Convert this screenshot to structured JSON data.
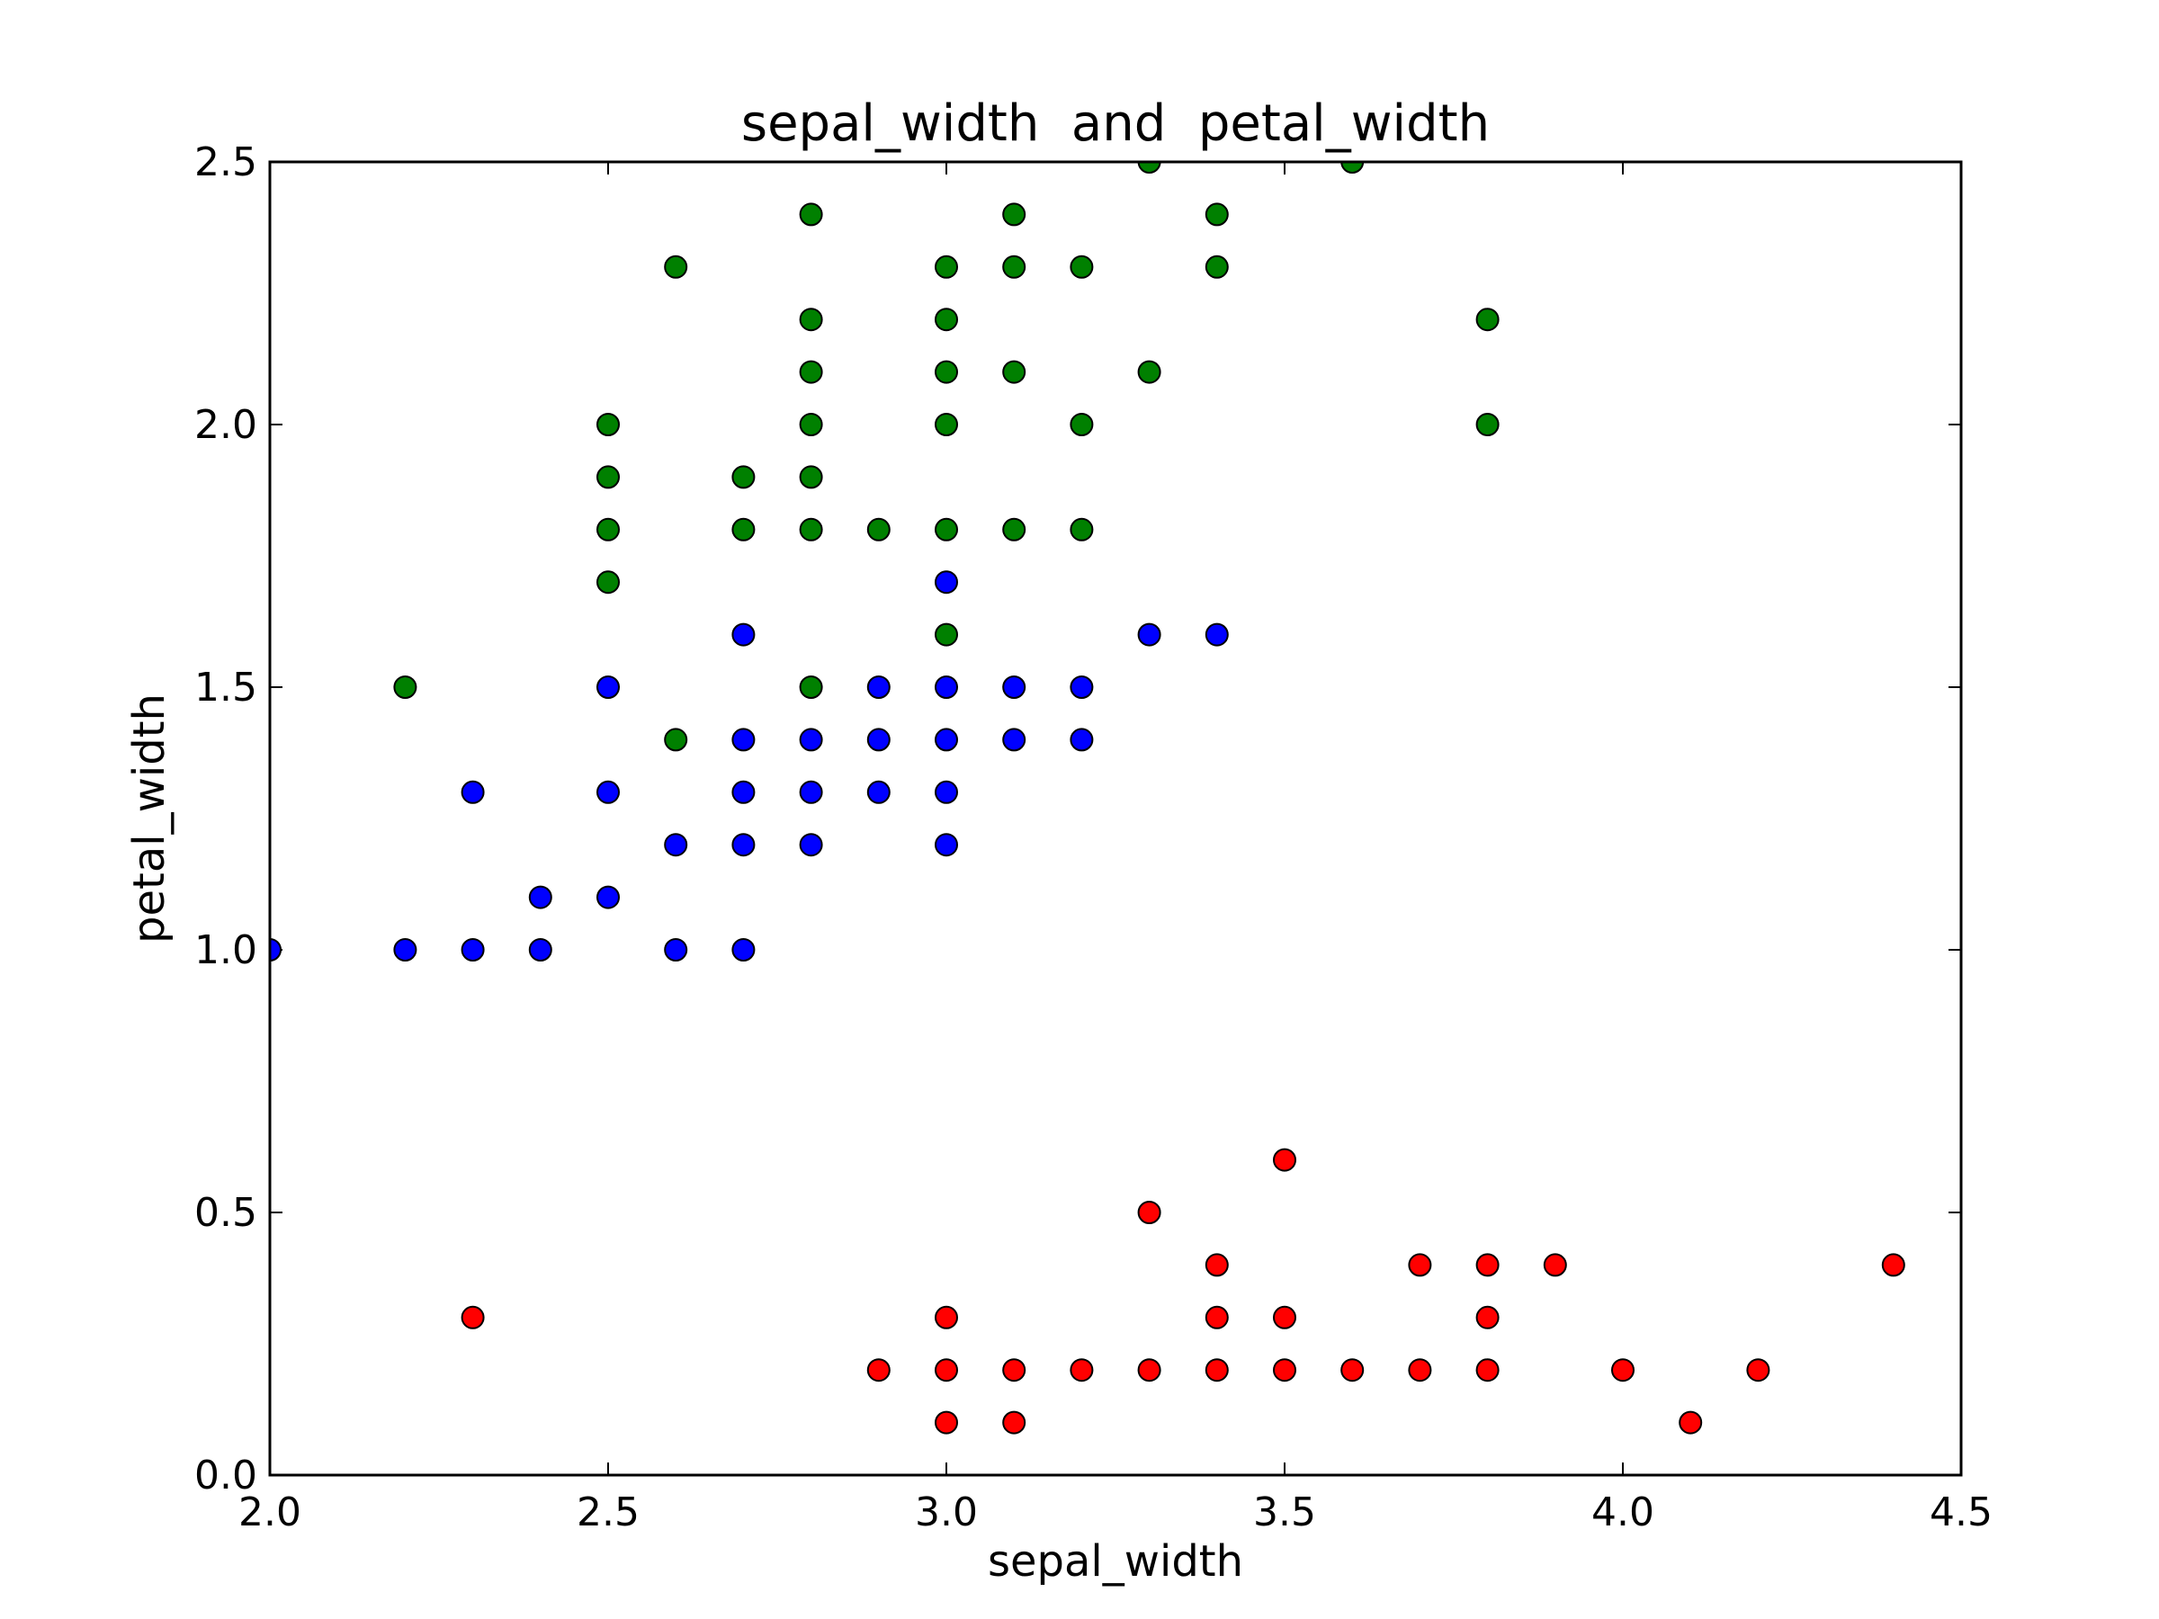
{
  "chart_data": {
    "type": "scatter",
    "title": "sepal_width  and  petal_width",
    "xlabel": "sepal_width",
    "ylabel": "petal_width",
    "xlim": [
      2.0,
      4.5
    ],
    "ylim": [
      0.0,
      2.5
    ],
    "xticks": [
      "2.0",
      "2.5",
      "3.0",
      "3.5",
      "4.0",
      "4.5"
    ],
    "yticks": [
      "0.0",
      "0.5",
      "1.0",
      "1.5",
      "2.0",
      "2.5"
    ],
    "grid": false,
    "series": [
      {
        "color": "#ff0000",
        "points": [
          [
            2.3,
            0.3
          ],
          [
            2.9,
            0.2
          ],
          [
            3.0,
            0.3
          ],
          [
            3.0,
            0.2
          ],
          [
            3.0,
            0.1
          ],
          [
            3.1,
            0.2
          ],
          [
            3.1,
            0.1
          ],
          [
            3.2,
            0.2
          ],
          [
            3.3,
            0.5
          ],
          [
            3.3,
            0.2
          ],
          [
            3.4,
            0.4
          ],
          [
            3.4,
            0.3
          ],
          [
            3.4,
            0.2
          ],
          [
            3.5,
            0.6
          ],
          [
            3.5,
            0.3
          ],
          [
            3.5,
            0.2
          ],
          [
            3.6,
            0.2
          ],
          [
            3.7,
            0.4
          ],
          [
            3.7,
            0.2
          ],
          [
            3.8,
            0.4
          ],
          [
            3.8,
            0.3
          ],
          [
            3.8,
            0.2
          ],
          [
            3.9,
            0.4
          ],
          [
            4.0,
            0.2
          ],
          [
            4.1,
            0.1
          ],
          [
            4.2,
            0.2
          ],
          [
            4.4,
            0.4
          ]
        ]
      },
      {
        "color": "#0000ff",
        "points": [
          [
            2.0,
            1.0
          ],
          [
            2.2,
            1.0
          ],
          [
            2.3,
            1.3
          ],
          [
            2.3,
            1.0
          ],
          [
            2.4,
            1.1
          ],
          [
            2.4,
            1.0
          ],
          [
            2.5,
            1.5
          ],
          [
            2.5,
            1.3
          ],
          [
            2.5,
            1.1
          ],
          [
            2.6,
            1.2
          ],
          [
            2.6,
            1.0
          ],
          [
            2.7,
            1.6
          ],
          [
            2.7,
            1.4
          ],
          [
            2.7,
            1.3
          ],
          [
            2.7,
            1.2
          ],
          [
            2.7,
            1.0
          ],
          [
            2.8,
            1.4
          ],
          [
            2.8,
            1.3
          ],
          [
            2.8,
            1.2
          ],
          [
            2.9,
            1.5
          ],
          [
            2.9,
            1.4
          ],
          [
            2.9,
            1.3
          ],
          [
            3.0,
            1.7
          ],
          [
            3.0,
            1.5
          ],
          [
            3.0,
            1.4
          ],
          [
            3.0,
            1.3
          ],
          [
            3.0,
            1.2
          ],
          [
            3.1,
            1.5
          ],
          [
            3.1,
            1.4
          ],
          [
            3.2,
            1.5
          ],
          [
            3.2,
            1.4
          ],
          [
            3.3,
            1.6
          ],
          [
            3.4,
            1.6
          ]
        ]
      },
      {
        "color": "#008000",
        "points": [
          [
            2.2,
            1.5
          ],
          [
            2.5,
            2.0
          ],
          [
            2.5,
            1.9
          ],
          [
            2.5,
            1.8
          ],
          [
            2.5,
            1.7
          ],
          [
            2.6,
            2.3
          ],
          [
            2.6,
            1.4
          ],
          [
            2.7,
            1.9
          ],
          [
            2.7,
            1.8
          ],
          [
            2.8,
            2.4
          ],
          [
            2.8,
            2.2
          ],
          [
            2.8,
            2.1
          ],
          [
            2.8,
            2.0
          ],
          [
            2.8,
            1.9
          ],
          [
            2.8,
            1.8
          ],
          [
            2.8,
            1.5
          ],
          [
            2.9,
            1.8
          ],
          [
            3.0,
            2.3
          ],
          [
            3.0,
            2.2
          ],
          [
            3.0,
            2.1
          ],
          [
            3.0,
            2.0
          ],
          [
            3.0,
            1.8
          ],
          [
            3.0,
            1.6
          ],
          [
            3.1,
            2.4
          ],
          [
            3.1,
            2.3
          ],
          [
            3.1,
            2.1
          ],
          [
            3.1,
            1.8
          ],
          [
            3.2,
            2.3
          ],
          [
            3.2,
            2.0
          ],
          [
            3.2,
            1.8
          ],
          [
            3.3,
            2.5
          ],
          [
            3.3,
            2.1
          ],
          [
            3.4,
            2.4
          ],
          [
            3.4,
            2.3
          ],
          [
            3.6,
            2.5
          ],
          [
            3.8,
            2.2
          ],
          [
            3.8,
            2.0
          ]
        ]
      }
    ]
  }
}
